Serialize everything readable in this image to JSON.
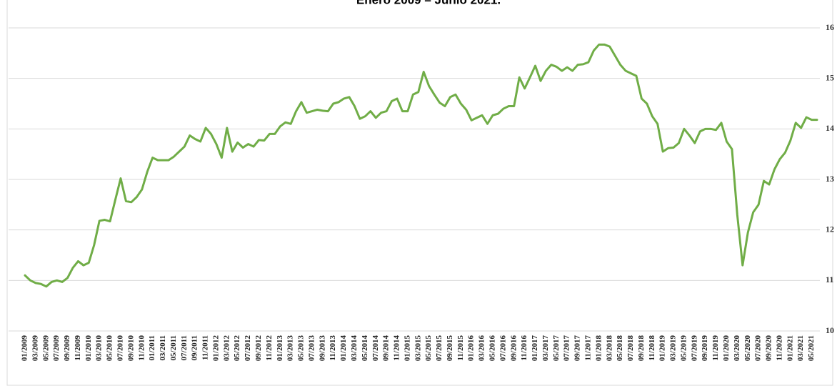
{
  "chart_data": {
    "type": "line",
    "title": "Enero 2009 – Junio 2021.",
    "categories": [
      "01/2009",
      null,
      "03/2009",
      null,
      "05/2009",
      null,
      "07/2009",
      null,
      "09/2009",
      null,
      "11/2009",
      null,
      "01/2010",
      null,
      "03/2010",
      null,
      "05/2010",
      null,
      "07/2010",
      null,
      "09/2010",
      null,
      "11/2010",
      null,
      "01/2011",
      null,
      "03/2011",
      null,
      "05/2011",
      null,
      "07/2011",
      null,
      "09/2011",
      null,
      "11/2011",
      null,
      "01/2012",
      null,
      "03/2012",
      null,
      "05/2012",
      null,
      "07/2012",
      null,
      "09/2012",
      null,
      "11/2012",
      null,
      "01/2013",
      null,
      "03/2013",
      null,
      "05/2013",
      null,
      "07/2013",
      null,
      "09/2013",
      null,
      "11/2013",
      null,
      "01/2014",
      null,
      "03/2014",
      null,
      "05/2014",
      null,
      "07/2014",
      null,
      "09/2014",
      null,
      "11/2014",
      null,
      "01/2015",
      null,
      "03/2015",
      null,
      "05/2015",
      null,
      "07/2015",
      null,
      "09/2015",
      null,
      "11/2015",
      null,
      "01/2016",
      null,
      "03/2016",
      null,
      "05/2016",
      null,
      "07/2016",
      null,
      "09/2016",
      null,
      "11/2016",
      null,
      "01/2017",
      null,
      "03/2017",
      null,
      "05/2017",
      null,
      "07/2017",
      null,
      "09/2017",
      null,
      "11/2017",
      null,
      "01/2018",
      null,
      "03/2018",
      null,
      "05/2018",
      null,
      "07/2018",
      null,
      "09/2018",
      null,
      "11/2018",
      null,
      "01/2019",
      null,
      "03/2019",
      null,
      "05/2019",
      null,
      "07/2019",
      null,
      "09/2019",
      null,
      "11/2019",
      null,
      "01/2020",
      null,
      "03/2020",
      null,
      "05/2020",
      null,
      "07/2020",
      null,
      "09/2020",
      null,
      "11/2020",
      null,
      "01/2021",
      null,
      "03/2021",
      null,
      "05/2021",
      null
    ],
    "values": [
      11.1,
      11.0,
      10.95,
      10.93,
      10.88,
      10.97,
      11.0,
      10.97,
      11.05,
      11.25,
      11.38,
      11.3,
      11.35,
      11.7,
      12.18,
      12.2,
      12.17,
      12.6,
      13.02,
      12.57,
      12.55,
      12.65,
      12.8,
      13.15,
      13.43,
      13.38,
      13.38,
      13.38,
      13.45,
      13.55,
      13.65,
      13.87,
      13.8,
      13.75,
      14.02,
      13.9,
      13.7,
      13.43,
      14.02,
      13.55,
      13.73,
      13.63,
      13.7,
      13.65,
      13.78,
      13.77,
      13.9,
      13.9,
      14.05,
      14.13,
      14.1,
      14.35,
      14.53,
      14.32,
      14.35,
      14.38,
      14.36,
      14.35,
      14.5,
      14.53,
      14.6,
      14.63,
      14.45,
      14.2,
      14.25,
      14.35,
      14.22,
      14.32,
      14.35,
      14.55,
      14.6,
      14.35,
      14.35,
      14.68,
      14.73,
      15.13,
      14.85,
      14.68,
      14.52,
      14.45,
      14.63,
      14.68,
      14.5,
      14.38,
      14.17,
      14.22,
      14.27,
      14.1,
      14.27,
      14.3,
      14.4,
      14.45,
      14.45,
      15.02,
      14.8,
      15.02,
      15.25,
      14.95,
      15.15,
      15.27,
      15.23,
      15.15,
      15.22,
      15.15,
      15.27,
      15.28,
      15.32,
      15.55,
      15.67,
      15.67,
      15.63,
      15.45,
      15.27,
      15.15,
      15.1,
      15.05,
      14.6,
      14.5,
      14.25,
      14.1,
      13.55,
      13.62,
      13.63,
      13.72,
      14.0,
      13.87,
      13.72,
      13.95,
      14.0,
      14.0,
      13.98,
      14.12,
      13.75,
      13.6,
      12.3,
      11.3,
      11.95,
      12.35,
      12.5,
      12.97,
      12.9,
      13.2,
      13.4,
      13.53,
      13.77,
      14.12,
      14.02,
      14.23,
      14.18,
      14.18
    ],
    "color": "#70ad47",
    "ylim": [
      10,
      16
    ],
    "yticks": [
      10,
      11,
      12,
      13,
      14,
      15,
      16
    ],
    "grid": true
  }
}
